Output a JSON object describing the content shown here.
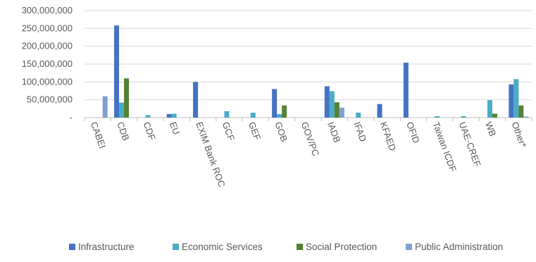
{
  "chart_data": {
    "type": "bar",
    "title": "",
    "xlabel": "",
    "ylabel": "",
    "ylim": [
      0,
      300000000
    ],
    "y_ticks": [
      {
        "value": 0,
        "label": "-"
      },
      {
        "value": 50000000,
        "label": "50,000,000"
      },
      {
        "value": 100000000,
        "label": "100,000,000"
      },
      {
        "value": 150000000,
        "label": "150,000,000"
      },
      {
        "value": 200000000,
        "label": "200,000,000"
      },
      {
        "value": 250000000,
        "label": "250,000,000"
      },
      {
        "value": 300000000,
        "label": "300,000,000"
      }
    ],
    "grid": true,
    "legend_position": "bottom",
    "categories": [
      "CABEI",
      "CDB",
      "CDF",
      "EU",
      "EXIM Bank ROC",
      "GCF",
      "GEF",
      "GOB",
      "GOV/PC",
      "IADB",
      "IFAD",
      "KFAED",
      "OFID",
      "Taiwan ICDF",
      "UAE-CREF",
      "WB",
      "Other*"
    ],
    "series": [
      {
        "name": "Infrastructure",
        "color": "#4472c4",
        "values": [
          0,
          258000000,
          0,
          10000000,
          100000000,
          0,
          0,
          80000000,
          0,
          88000000,
          0,
          38000000,
          154000000,
          0,
          0,
          0,
          93000000
        ]
      },
      {
        "name": "Economic Services",
        "color": "#4bacc6",
        "values": [
          0,
          42000000,
          7000000,
          11000000,
          0,
          18000000,
          14000000,
          10000000,
          0,
          74000000,
          14000000,
          0,
          0,
          4000000,
          4000000,
          49000000,
          108000000
        ]
      },
      {
        "name": "Social Protection",
        "color": "#548235",
        "values": [
          0,
          110000000,
          0,
          0,
          0,
          0,
          0,
          34000000,
          0,
          43000000,
          0,
          0,
          0,
          0,
          0,
          11000000,
          34000000
        ]
      },
      {
        "name": "Public Administration",
        "color": "#7f9fd6",
        "values": [
          60000000,
          0,
          0,
          0,
          0,
          0,
          0,
          0,
          0,
          28000000,
          0,
          0,
          0,
          0,
          0,
          0,
          3000000
        ]
      }
    ]
  }
}
